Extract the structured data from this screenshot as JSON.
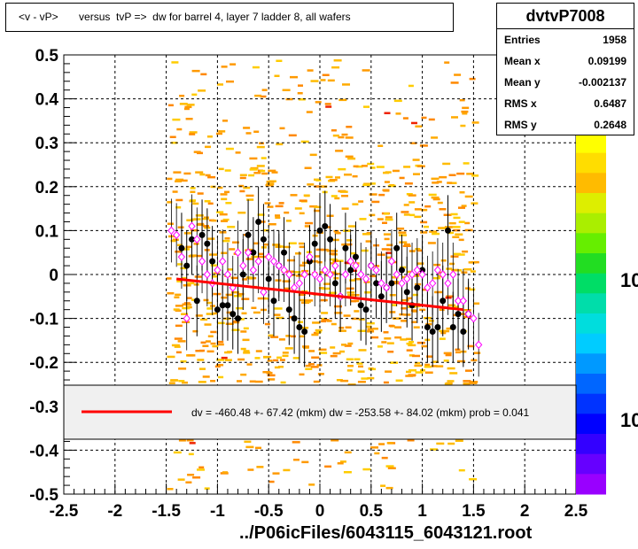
{
  "title": "<v - vP>       versus  tvP =>  dw for barrel 4, layer 7 ladder 8, all wafers",
  "stats": {
    "name": "dvtvP7008",
    "rows": [
      {
        "label": "Entries",
        "value": "1958"
      },
      {
        "label": "Mean x",
        "value": "0.09199"
      },
      {
        "label": "Mean y",
        "value": "-0.002137"
      },
      {
        "label": "RMS x",
        "value": "0.6487"
      },
      {
        "label": "RMS y",
        "value": "0.2648"
      }
    ]
  },
  "legend": {
    "text": "dv = -460.48 +- 67.42 (mkm) dw = -253.58 +- 84.02 (mkm) prob = 0.041",
    "line_color": "#ff0000"
  },
  "footer": "../P06icFiles/6043115_6043121.root",
  "colorbar_labels": [
    "10",
    "10"
  ],
  "chart_data": {
    "type": "scatter",
    "xlim": [
      -2.5,
      2.5
    ],
    "ylim": [
      -0.5,
      0.5
    ],
    "xticks": [
      "-2.5",
      "-2",
      "-1.5",
      "-1",
      "-0.5",
      "0",
      "0.5",
      "1",
      "1.5",
      "2",
      "2.5"
    ],
    "yticks": [
      "-0.5",
      "-0.4",
      "-0.3",
      "-0.2",
      "-0.1",
      "0",
      "0.1",
      "0.2",
      "0.3",
      "0.4",
      "0.5"
    ],
    "grid": true,
    "fit_line": {
      "x": [
        -1.4,
        1.4
      ],
      "y": [
        -0.01,
        -0.08
      ],
      "color": "#ff0000"
    },
    "black_points": {
      "color": "#000000",
      "x": [
        -1.35,
        -1.3,
        -1.25,
        -1.2,
        -1.15,
        -1.1,
        -1.05,
        -1.0,
        -0.95,
        -0.9,
        -0.85,
        -0.8,
        -0.75,
        -0.7,
        -0.65,
        -0.6,
        -0.55,
        -0.5,
        -0.45,
        -0.4,
        -0.35,
        -0.3,
        -0.25,
        -0.2,
        -0.15,
        -0.1,
        -0.05,
        0.0,
        0.05,
        0.1,
        0.15,
        0.2,
        0.25,
        0.3,
        0.35,
        0.4,
        0.45,
        0.5,
        0.55,
        0.6,
        0.65,
        0.7,
        0.75,
        0.8,
        0.85,
        0.9,
        0.95,
        1.0,
        1.05,
        1.1,
        1.15,
        1.2,
        1.25,
        1.3,
        1.35,
        1.4,
        1.45
      ],
      "y": [
        0.06,
        0.02,
        0.08,
        -0.06,
        0.09,
        0.07,
        0.03,
        -0.08,
        -0.07,
        -0.07,
        -0.09,
        -0.1,
        0.0,
        0.09,
        0.05,
        0.12,
        0.08,
        -0.01,
        -0.06,
        0.02,
        0.05,
        -0.08,
        -0.1,
        -0.12,
        -0.13,
        0.03,
        0.07,
        0.1,
        0.11,
        0.08,
        -0.02,
        -0.05,
        0.06,
        0.01,
        0.04,
        -0.07,
        -0.08,
        0.02,
        -0.02,
        -0.05,
        -0.03,
        -0.02,
        0.06,
        0.01,
        -0.04,
        -0.07,
        -0.03,
        0.01,
        -0.12,
        -0.13,
        -0.12,
        -0.06,
        0.1,
        -0.12,
        -0.09,
        -0.13,
        -0.09
      ]
    },
    "magenta_points": {
      "color": "#ff00ff",
      "x": [
        -1.45,
        -1.4,
        -1.35,
        -1.3,
        -1.25,
        -1.2,
        -1.15,
        -1.1,
        -1.05,
        -1.0,
        -0.95,
        -0.9,
        -0.85,
        -0.8,
        -0.75,
        -0.7,
        -0.65,
        -0.6,
        -0.55,
        -0.5,
        -0.45,
        -0.4,
        -0.35,
        -0.3,
        -0.25,
        -0.2,
        -0.15,
        -0.1,
        -0.05,
        0.0,
        0.05,
        0.1,
        0.15,
        0.2,
        0.25,
        0.3,
        0.35,
        0.4,
        0.45,
        0.5,
        0.55,
        0.6,
        0.65,
        0.7,
        0.75,
        0.8,
        0.85,
        0.9,
        0.95,
        1.0,
        1.05,
        1.1,
        1.15,
        1.2,
        1.25,
        1.3,
        1.35,
        1.4,
        1.45,
        1.5,
        1.55
      ],
      "y": [
        0.1,
        0.09,
        0.04,
        -0.1,
        0.11,
        0.08,
        0.03,
        0.0,
        -0.02,
        0.01,
        0.03,
        0.0,
        -0.03,
        0.05,
        0.02,
        0.05,
        0.01,
        0.03,
        -0.04,
        0.04,
        0.03,
        0.02,
        0.01,
        0.0,
        -0.03,
        -0.02,
        0.0,
        0.04,
        0.0,
        -0.01,
        0.01,
        0.0,
        0.02,
        -0.05,
        0.0,
        0.03,
        0.02,
        0.0,
        -0.01,
        0.02,
        0.01,
        -0.02,
        -0.03,
        0.03,
        0.0,
        -0.02,
        -0.01,
        0.0,
        0.01,
        0.0,
        -0.03,
        -0.02,
        0.01,
        0.0,
        -0.02,
        0.0,
        -0.06,
        -0.06,
        -0.09,
        -0.1,
        -0.16
      ]
    }
  }
}
